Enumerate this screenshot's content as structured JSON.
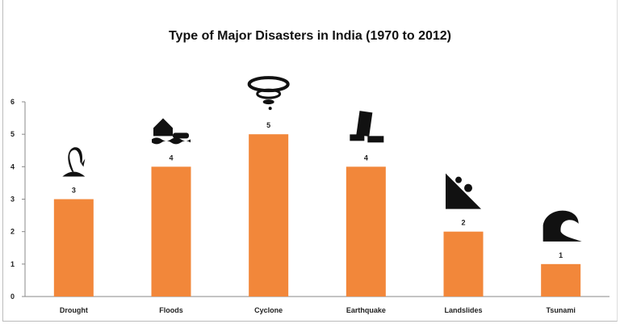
{
  "chart_data": {
    "type": "bar",
    "title": "Type of Major Disasters in India (1970 to 2012)",
    "categories": [
      "Drought",
      "Floods",
      "Cyclone",
      "Earthquake",
      "Landslides",
      "Tsunami"
    ],
    "values": [
      3,
      4,
      5,
      4,
      2,
      1
    ],
    "data_labels": [
      "3",
      "4",
      "5",
      "4",
      "2",
      "1"
    ],
    "icons": [
      "drought-icon",
      "flood-icon",
      "cyclone-icon",
      "earthquake-icon",
      "landslide-icon",
      "tsunami-icon"
    ],
    "yticks": [
      "0",
      "1",
      "2",
      "3",
      "4",
      "5",
      "6"
    ],
    "ylim": [
      0,
      6
    ],
    "xlabel": "",
    "ylabel": "",
    "grid": false,
    "legend": "none",
    "bar_color": "#F2873A"
  }
}
